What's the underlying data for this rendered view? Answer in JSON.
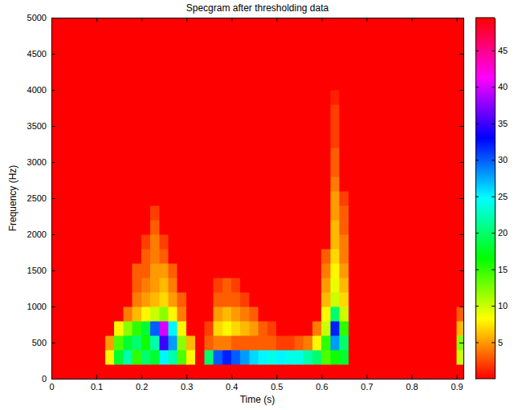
{
  "chart_data": {
    "type": "heatmap",
    "title": "Specgram after thresholding data",
    "x_label": "Time (s)",
    "y_label": "Frequency (Hz)",
    "xlim": [
      0,
      0.915
    ],
    "ylim": [
      0,
      5000
    ],
    "xticks": [
      0,
      0.1,
      0.2,
      0.3,
      0.4,
      0.5,
      0.6,
      0.7,
      0.8,
      0.9
    ],
    "yticks": [
      0,
      500,
      1000,
      1500,
      2000,
      2500,
      3000,
      3500,
      4000,
      4500,
      5000
    ],
    "x_edges": [
      0,
      0.02,
      0.04,
      0.06,
      0.08,
      0.1,
      0.12,
      0.14,
      0.16,
      0.18,
      0.2,
      0.22,
      0.24,
      0.26,
      0.28,
      0.3,
      0.32,
      0.34,
      0.36,
      0.38,
      0.4,
      0.42,
      0.44,
      0.46,
      0.48,
      0.5,
      0.52,
      0.54,
      0.56,
      0.58,
      0.6,
      0.62,
      0.64,
      0.66,
      0.68,
      0.7,
      0.72,
      0.74,
      0.76,
      0.78,
      0.8,
      0.82,
      0.84,
      0.86,
      0.88,
      0.9,
      0.92
    ],
    "y_edges": [
      0,
      200,
      400,
      600,
      800,
      1000,
      1200,
      1400,
      1600,
      1800,
      2000,
      2200,
      2400,
      2600,
      2800,
      3000,
      3200,
      3400,
      3600,
      3800,
      4000,
      4200,
      4400,
      4600,
      4800,
      5000
    ],
    "z": [
      [
        0,
        0,
        0,
        0,
        0,
        0,
        0,
        0,
        0,
        0,
        0,
        0,
        0,
        0,
        0,
        0,
        0,
        0,
        0,
        0,
        0,
        0,
        0,
        0,
        0,
        0,
        0,
        0,
        0,
        0,
        0,
        0,
        0,
        0,
        0,
        0,
        0,
        0,
        0,
        0,
        0,
        0,
        0,
        0,
        0,
        0
      ],
      [
        0,
        0,
        0,
        0,
        0,
        0,
        8,
        18,
        22,
        15,
        20,
        18,
        25,
        22,
        14,
        8,
        0,
        20,
        30,
        32,
        30,
        28,
        26,
        25,
        24,
        25,
        24,
        24,
        22,
        20,
        14,
        16,
        18,
        0,
        0,
        0,
        0,
        0,
        0,
        0,
        0,
        0,
        0,
        0,
        0,
        10
      ],
      [
        0,
        0,
        0,
        0,
        0,
        0,
        5,
        14,
        18,
        20,
        16,
        22,
        35,
        28,
        12,
        6,
        0,
        3,
        4,
        4,
        3,
        3,
        3,
        3,
        3,
        2,
        2,
        3,
        4,
        8,
        15,
        28,
        20,
        0,
        0,
        0,
        0,
        0,
        0,
        0,
        0,
        0,
        0,
        0,
        0,
        12
      ],
      [
        0,
        0,
        0,
        0,
        0,
        0,
        0,
        8,
        12,
        15,
        18,
        30,
        40,
        25,
        8,
        0,
        0,
        2,
        7,
        8,
        7,
        6,
        5,
        3,
        2,
        0,
        0,
        0,
        0,
        4,
        10,
        32,
        15,
        0,
        0,
        0,
        0,
        0,
        0,
        0,
        0,
        0,
        0,
        0,
        0,
        6
      ],
      [
        0,
        0,
        0,
        0,
        0,
        0,
        0,
        0,
        4,
        6,
        8,
        10,
        12,
        8,
        4,
        0,
        0,
        0,
        5,
        6,
        5,
        4,
        3,
        0,
        0,
        0,
        0,
        0,
        0,
        0,
        8,
        20,
        10,
        0,
        0,
        0,
        0,
        0,
        0,
        0,
        0,
        0,
        0,
        0,
        0,
        3
      ],
      [
        0,
        0,
        0,
        0,
        0,
        0,
        0,
        0,
        0,
        4,
        5,
        6,
        7,
        5,
        3,
        0,
        0,
        0,
        3,
        3,
        3,
        2,
        0,
        0,
        0,
        0,
        0,
        0,
        0,
        0,
        6,
        10,
        7,
        0,
        0,
        0,
        0,
        0,
        0,
        0,
        0,
        0,
        0,
        0,
        0,
        0
      ],
      [
        0,
        0,
        0,
        0,
        0,
        0,
        0,
        0,
        0,
        3,
        4,
        5,
        6,
        4,
        0,
        0,
        0,
        0,
        2,
        3,
        2,
        0,
        0,
        0,
        0,
        0,
        0,
        0,
        0,
        0,
        5,
        9,
        6,
        0,
        0,
        0,
        0,
        0,
        0,
        0,
        0,
        0,
        0,
        0,
        0,
        0
      ],
      [
        0,
        0,
        0,
        0,
        0,
        0,
        0,
        0,
        0,
        3,
        3,
        5,
        5,
        3,
        0,
        0,
        0,
        0,
        0,
        0,
        0,
        0,
        0,
        0,
        0,
        0,
        0,
        0,
        0,
        0,
        4,
        8,
        5,
        0,
        0,
        0,
        0,
        0,
        0,
        0,
        0,
        0,
        0,
        0,
        0,
        0
      ],
      [
        0,
        0,
        0,
        0,
        0,
        0,
        0,
        0,
        0,
        0,
        3,
        4,
        3,
        0,
        0,
        0,
        0,
        0,
        0,
        0,
        0,
        0,
        0,
        0,
        0,
        0,
        0,
        0,
        0,
        0,
        3,
        7,
        4,
        0,
        0,
        0,
        0,
        0,
        0,
        0,
        0,
        0,
        0,
        0,
        0,
        0
      ],
      [
        0,
        0,
        0,
        0,
        0,
        0,
        0,
        0,
        0,
        0,
        2,
        4,
        2,
        0,
        0,
        0,
        0,
        0,
        0,
        0,
        0,
        0,
        0,
        0,
        0,
        0,
        0,
        0,
        0,
        0,
        0,
        6,
        4,
        0,
        0,
        0,
        0,
        0,
        0,
        0,
        0,
        0,
        0,
        0,
        0,
        0
      ],
      [
        0,
        0,
        0,
        0,
        0,
        0,
        0,
        0,
        0,
        0,
        0,
        3,
        0,
        0,
        0,
        0,
        0,
        0,
        0,
        0,
        0,
        0,
        0,
        0,
        0,
        0,
        0,
        0,
        0,
        0,
        0,
        6,
        3,
        0,
        0,
        0,
        0,
        0,
        0,
        0,
        0,
        0,
        0,
        0,
        0,
        0
      ],
      [
        0,
        0,
        0,
        0,
        0,
        0,
        0,
        0,
        0,
        0,
        0,
        2,
        0,
        0,
        0,
        0,
        0,
        0,
        0,
        0,
        0,
        0,
        0,
        0,
        0,
        0,
        0,
        0,
        0,
        0,
        0,
        5,
        3,
        0,
        0,
        0,
        0,
        0,
        0,
        0,
        0,
        0,
        0,
        0,
        0,
        0
      ],
      [
        0,
        0,
        0,
        0,
        0,
        0,
        0,
        0,
        0,
        0,
        0,
        0,
        0,
        0,
        0,
        0,
        0,
        0,
        0,
        0,
        0,
        0,
        0,
        0,
        0,
        0,
        0,
        0,
        0,
        0,
        0,
        5,
        2,
        0,
        0,
        0,
        0,
        0,
        0,
        0,
        0,
        0,
        0,
        0,
        0,
        0
      ],
      [
        0,
        0,
        0,
        0,
        0,
        0,
        0,
        0,
        0,
        0,
        0,
        0,
        0,
        0,
        0,
        0,
        0,
        0,
        0,
        0,
        0,
        0,
        0,
        0,
        0,
        0,
        0,
        0,
        0,
        0,
        0,
        4,
        0,
        0,
        0,
        0,
        0,
        0,
        0,
        0,
        0,
        0,
        0,
        0,
        0,
        0
      ],
      [
        0,
        0,
        0,
        0,
        0,
        0,
        0,
        0,
        0,
        0,
        0,
        0,
        0,
        0,
        0,
        0,
        0,
        0,
        0,
        0,
        0,
        0,
        0,
        0,
        0,
        0,
        0,
        0,
        0,
        0,
        0,
        3,
        0,
        0,
        0,
        0,
        0,
        0,
        0,
        0,
        0,
        0,
        0,
        0,
        0,
        0
      ],
      [
        0,
        0,
        0,
        0,
        0,
        0,
        0,
        0,
        0,
        0,
        0,
        0,
        0,
        0,
        0,
        0,
        0,
        0,
        0,
        0,
        0,
        0,
        0,
        0,
        0,
        0,
        0,
        0,
        0,
        0,
        0,
        3,
        0,
        0,
        0,
        0,
        0,
        0,
        0,
        0,
        0,
        0,
        0,
        0,
        0,
        0
      ],
      [
        0,
        0,
        0,
        0,
        0,
        0,
        0,
        0,
        0,
        0,
        0,
        0,
        0,
        0,
        0,
        0,
        0,
        0,
        0,
        0,
        0,
        0,
        0,
        0,
        0,
        0,
        0,
        0,
        0,
        0,
        0,
        2,
        0,
        0,
        0,
        0,
        0,
        0,
        0,
        0,
        0,
        0,
        0,
        0,
        0,
        0
      ],
      [
        0,
        0,
        0,
        0,
        0,
        0,
        0,
        0,
        0,
        0,
        0,
        0,
        0,
        0,
        0,
        0,
        0,
        0,
        0,
        0,
        0,
        0,
        0,
        0,
        0,
        0,
        0,
        0,
        0,
        0,
        0,
        2,
        0,
        0,
        0,
        0,
        0,
        0,
        0,
        0,
        0,
        0,
        0,
        0,
        0,
        0
      ],
      [
        0,
        0,
        0,
        0,
        0,
        0,
        0,
        0,
        0,
        0,
        0,
        0,
        0,
        0,
        0,
        0,
        0,
        0,
        0,
        0,
        0,
        0,
        0,
        0,
        0,
        0,
        0,
        0,
        0,
        0,
        0,
        2,
        0,
        0,
        0,
        0,
        0,
        0,
        0,
        0,
        0,
        0,
        0,
        0,
        0,
        0
      ],
      [
        0,
        0,
        0,
        0,
        0,
        0,
        0,
        0,
        0,
        0,
        0,
        0,
        0,
        0,
        0,
        0,
        0,
        0,
        0,
        0,
        0,
        0,
        0,
        0,
        0,
        0,
        0,
        0,
        0,
        0,
        0,
        1,
        0,
        0,
        0,
        0,
        0,
        0,
        0,
        0,
        0,
        0,
        0,
        0,
        0,
        0
      ],
      [
        0,
        0,
        0,
        0,
        0,
        0,
        0,
        0,
        0,
        0,
        0,
        0,
        0,
        0,
        0,
        0,
        0,
        0,
        0,
        0,
        0,
        0,
        0,
        0,
        0,
        0,
        0,
        0,
        0,
        0,
        0,
        0,
        0,
        0,
        0,
        0,
        0,
        0,
        0,
        0,
        0,
        0,
        0,
        0,
        0,
        0
      ],
      [
        0,
        0,
        0,
        0,
        0,
        0,
        0,
        0,
        0,
        0,
        0,
        0,
        0,
        0,
        0,
        0,
        0,
        0,
        0,
        0,
        0,
        0,
        0,
        0,
        0,
        0,
        0,
        0,
        0,
        0,
        0,
        0,
        0,
        0,
        0,
        0,
        0,
        0,
        0,
        0,
        0,
        0,
        0,
        0,
        0,
        0
      ],
      [
        0,
        0,
        0,
        0,
        0,
        0,
        0,
        0,
        0,
        0,
        0,
        0,
        0,
        0,
        0,
        0,
        0,
        0,
        0,
        0,
        0,
        0,
        0,
        0,
        0,
        0,
        0,
        0,
        0,
        0,
        0,
        0,
        0,
        0,
        0,
        0,
        0,
        0,
        0,
        0,
        0,
        0,
        0,
        0,
        0,
        0
      ],
      [
        0,
        0,
        0,
        0,
        0,
        0,
        0,
        0,
        0,
        0,
        0,
        0,
        0,
        0,
        0,
        0,
        0,
        0,
        0,
        0,
        0,
        0,
        0,
        0,
        0,
        0,
        0,
        0,
        0,
        0,
        0,
        0,
        0,
        0,
        0,
        0,
        0,
        0,
        0,
        0,
        0,
        0,
        0,
        0,
        0,
        0
      ],
      [
        0,
        0,
        0,
        0,
        0,
        0,
        0,
        0,
        0,
        0,
        0,
        0,
        0,
        0,
        0,
        0,
        0,
        0,
        0,
        0,
        0,
        0,
        0,
        0,
        0,
        0,
        0,
        0,
        0,
        0,
        0,
        0,
        0,
        0,
        0,
        0,
        0,
        0,
        0,
        0,
        0,
        0,
        0,
        0,
        0,
        0
      ]
    ],
    "colorbar": {
      "lim": [
        0,
        49.5
      ],
      "ticks": [
        5,
        10,
        15,
        20,
        25,
        30,
        35,
        40,
        45
      ]
    }
  }
}
